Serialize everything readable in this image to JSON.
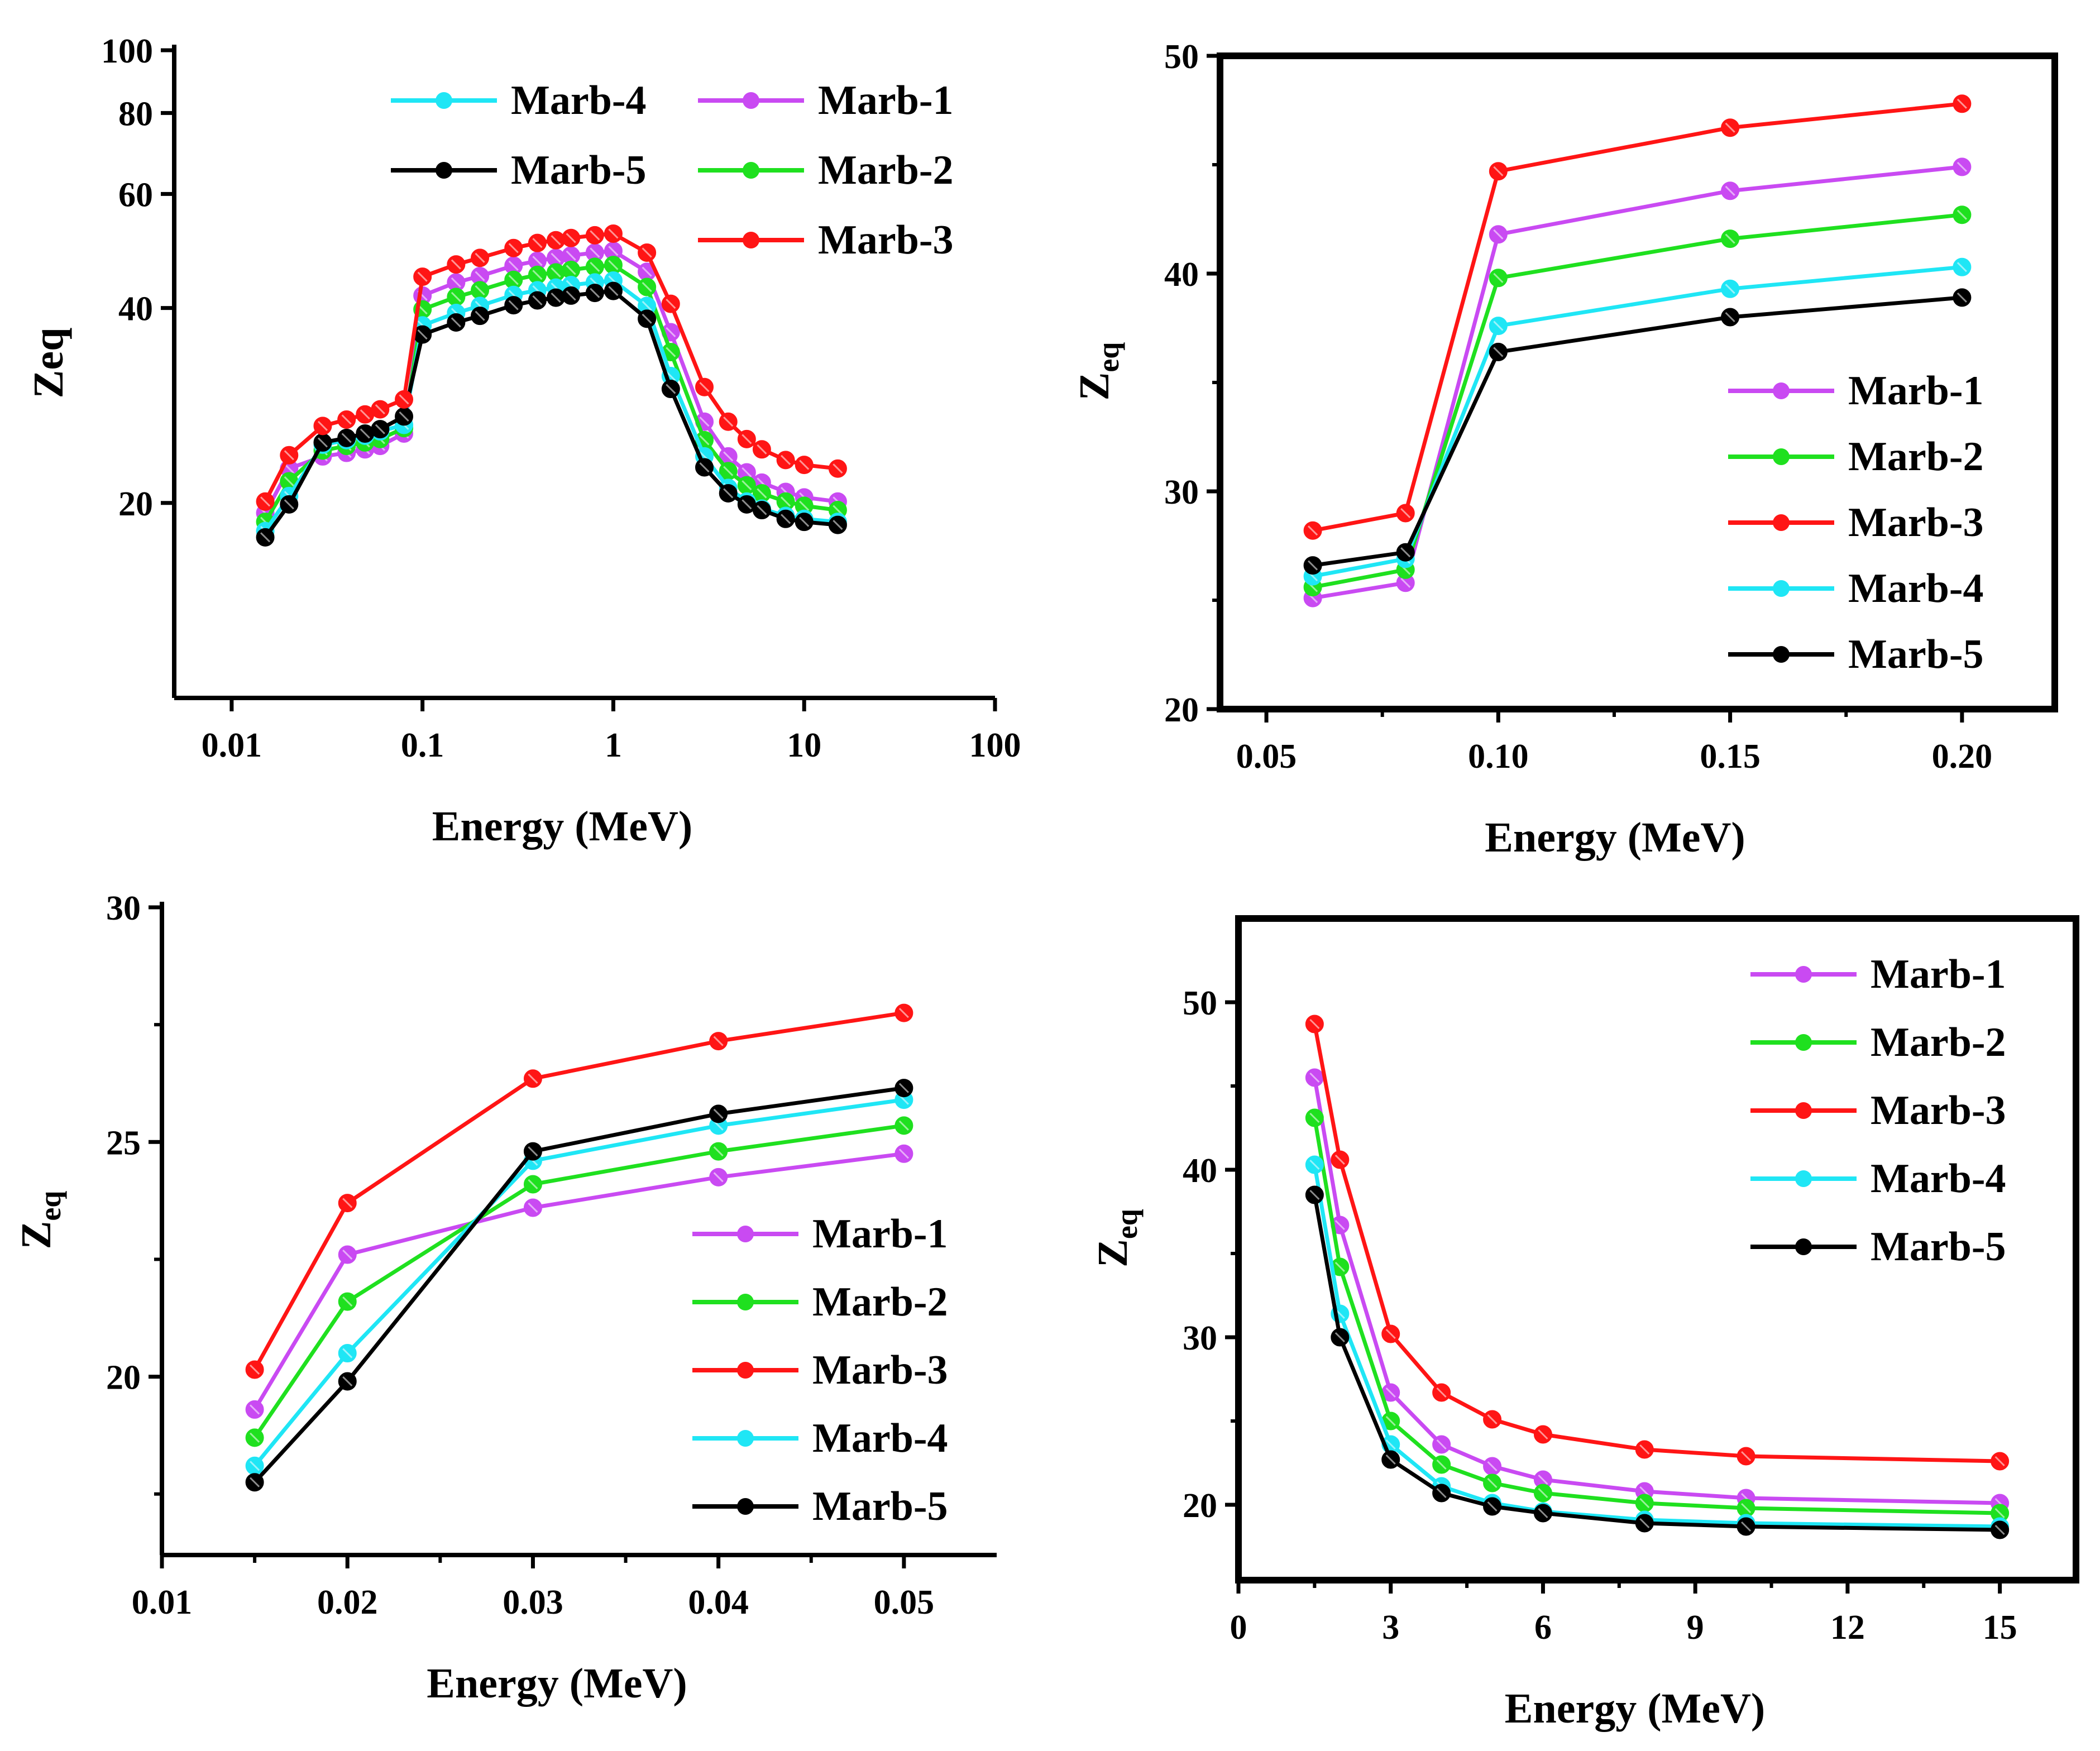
{
  "figure": {
    "description_panels": [
      "top-left",
      "top-right",
      "bottom-left",
      "bottom-right"
    ]
  },
  "colors": {
    "Marb-1": "#c94af2",
    "Marb-2": "#1fe01f",
    "Marb-3": "#ff1515",
    "Marb-4": "#1fe6f5",
    "Marb-5": "#000000",
    "axis": "#000000"
  },
  "chart_data": [
    {
      "type": "line",
      "panel": "top-left",
      "xscale": "log",
      "yscale": "log",
      "xlabel": "Energy (MeV)",
      "ylabel": "Zeq",
      "ylabel_sub": "",
      "xlim": [
        0.005,
        100
      ],
      "ylim": [
        10,
        100
      ],
      "xticks": [
        0.01,
        0.1,
        1,
        10,
        100
      ],
      "xtick_labels": [
        "0.01",
        "0.1",
        "1",
        "10",
        "100"
      ],
      "yticks": [
        20,
        40,
        60,
        80,
        100
      ],
      "ytick_labels": [
        "20",
        "40",
        "60",
        "80",
        "100"
      ],
      "legend_placement": "top-right",
      "legend_order": [
        "Marb-4",
        "Marb-5",
        "Marb-1",
        "Marb-2",
        "Marb-3"
      ],
      "legend_labels": {
        "Marb-1": "Marb-1",
        "Marb-2": "Marb-2",
        "Marb-3": "Marb-3",
        "Marb-4": "Marb-4",
        "Marb-5": "Marb-5"
      },
      "x": [
        0.015,
        0.02,
        0.03,
        0.04,
        0.05,
        0.06,
        0.08,
        0.1,
        0.15,
        0.2,
        0.3,
        0.4,
        0.5,
        0.6,
        0.8,
        1,
        1.5,
        2,
        3,
        4,
        5,
        6,
        8,
        10,
        15
      ],
      "series": [
        {
          "name": "Marb-1",
          "values": [
            19.3,
            22.6,
            23.6,
            23.9,
            24.2,
            24.5,
            25.6,
            41.8,
            43.8,
            44.8,
            46.5,
            47.3,
            47.8,
            48.2,
            48.7,
            49.0,
            45.5,
            36.7,
            26.7,
            23.6,
            22.3,
            21.5,
            20.8,
            20.4,
            20.1
          ]
        },
        {
          "name": "Marb-2",
          "values": [
            18.7,
            21.6,
            24.1,
            24.5,
            24.8,
            25.1,
            26.1,
            39.8,
            41.6,
            42.6,
            44.2,
            45.0,
            45.4,
            45.8,
            46.3,
            46.6,
            43.1,
            34.2,
            25.0,
            22.4,
            21.3,
            20.7,
            20.1,
            19.8,
            19.5
          ]
        },
        {
          "name": "Marb-3",
          "values": [
            20.1,
            23.7,
            26.3,
            26.9,
            27.4,
            27.9,
            28.9,
            44.7,
            46.7,
            47.8,
            49.5,
            50.4,
            50.9,
            51.3,
            51.8,
            52.1,
            48.7,
            40.6,
            30.2,
            26.7,
            25.1,
            24.2,
            23.3,
            22.9,
            22.6
          ]
        },
        {
          "name": "Marb-4",
          "values": [
            18.1,
            20.5,
            24.6,
            25.0,
            25.4,
            25.8,
            26.4,
            37.6,
            39.3,
            40.3,
            41.9,
            42.6,
            43.0,
            43.4,
            43.8,
            44.1,
            40.3,
            31.4,
            23.6,
            21.1,
            20.1,
            19.6,
            19.1,
            18.9,
            18.7
          ]
        },
        {
          "name": "Marb-5",
          "values": [
            17.7,
            19.9,
            24.8,
            25.2,
            25.6,
            26.0,
            27.2,
            36.4,
            38.0,
            38.9,
            40.4,
            41.1,
            41.5,
            41.8,
            42.2,
            42.5,
            38.5,
            30.0,
            22.7,
            20.7,
            19.9,
            19.5,
            18.9,
            18.7,
            18.5
          ]
        }
      ]
    },
    {
      "type": "line",
      "panel": "top-right",
      "xscale": "linear",
      "yscale": "linear",
      "xlabel": "Energy (MeV)",
      "ylabel": "Z",
      "ylabel_sub": "eq",
      "xlim": [
        0.04,
        0.22
      ],
      "ylim": [
        20,
        50
      ],
      "xticks": [
        0.05,
        0.1,
        0.15,
        0.2
      ],
      "xtick_labels": [
        "0.05",
        "0.10",
        "0.15",
        "0.20"
      ],
      "yticks": [
        20,
        30,
        40,
        50
      ],
      "ytick_labels": [
        "20",
        "30",
        "40",
        "50"
      ],
      "legend_placement": "bottom-right",
      "legend_order": [
        "Marb-1",
        "Marb-2",
        "Marb-3",
        "Marb-4",
        "Marb-5"
      ],
      "legend_labels": {
        "Marb-1": "Marb-1",
        "Marb-2": "Marb-2",
        "Marb-3": "Marb-3",
        "Marb-4": "Marb-4",
        "Marb-5": "Marb-5"
      },
      "x": [
        0.06,
        0.08,
        0.1,
        0.15,
        0.2
      ],
      "series": [
        {
          "name": "Marb-1",
          "values": [
            25.1,
            25.8,
            41.8,
            43.8,
            44.9
          ]
        },
        {
          "name": "Marb-2",
          "values": [
            25.6,
            26.4,
            39.8,
            41.6,
            42.7
          ]
        },
        {
          "name": "Marb-3",
          "values": [
            28.2,
            29.0,
            44.7,
            46.7,
            47.8
          ]
        },
        {
          "name": "Marb-4",
          "values": [
            26.1,
            26.9,
            37.6,
            39.3,
            40.3
          ]
        },
        {
          "name": "Marb-5",
          "values": [
            26.6,
            27.2,
            36.4,
            38.0,
            38.9
          ]
        }
      ]
    },
    {
      "type": "line",
      "panel": "bottom-left",
      "xscale": "linear",
      "yscale": "linear",
      "xlabel": "Energy (MeV)",
      "ylabel": "Z",
      "ylabel_sub": "eq",
      "xlim": [
        0.01,
        0.055
      ],
      "ylim": [
        16.2,
        30
      ],
      "xticks": [
        0.01,
        0.02,
        0.03,
        0.04,
        0.05
      ],
      "xtick_labels": [
        "0.01",
        "0.02",
        "0.03",
        "0.04",
        "0.05"
      ],
      "yticks": [
        20,
        25,
        30
      ],
      "ytick_labels": [
        "20",
        "25",
        "30"
      ],
      "legend_placement": "bottom-right",
      "legend_order": [
        "Marb-1",
        "Marb-2",
        "Marb-3",
        "Marb-4",
        "Marb-5"
      ],
      "legend_labels": {
        "Marb-1": "Marb-1",
        "Marb-2": "Marb-2",
        "Marb-3": "Marb-3",
        "Marb-4": "Marb-4",
        "Marb-5": "Marb-5"
      },
      "x": [
        0.015,
        0.02,
        0.03,
        0.04,
        0.05
      ],
      "series": [
        {
          "name": "Marb-1",
          "values": [
            19.3,
            22.6,
            23.6,
            24.25,
            24.75
          ]
        },
        {
          "name": "Marb-2",
          "values": [
            18.7,
            21.6,
            24.1,
            24.8,
            25.35
          ]
        },
        {
          "name": "Marb-3",
          "values": [
            20.15,
            23.7,
            26.35,
            27.15,
            27.75
          ]
        },
        {
          "name": "Marb-4",
          "values": [
            18.1,
            20.5,
            24.6,
            25.35,
            25.9
          ]
        },
        {
          "name": "Marb-5",
          "values": [
            17.75,
            19.9,
            24.8,
            25.6,
            26.15
          ]
        }
      ]
    },
    {
      "type": "line",
      "panel": "bottom-right",
      "xscale": "linear",
      "yscale": "linear",
      "xlabel": "Energy (MeV)",
      "ylabel": "Z",
      "ylabel_sub": "eq",
      "xlim": [
        0,
        16.5
      ],
      "ylim": [
        15.5,
        55
      ],
      "xticks": [
        0,
        3,
        6,
        9,
        12,
        15
      ],
      "xtick_labels": [
        "0",
        "3",
        "6",
        "9",
        "12",
        "15"
      ],
      "yticks": [
        20,
        30,
        40,
        50
      ],
      "ytick_labels": [
        "20",
        "30",
        "40",
        "50"
      ],
      "legend_placement": "top-right",
      "legend_order": [
        "Marb-1",
        "Marb-2",
        "Marb-3",
        "Marb-4",
        "Marb-5"
      ],
      "legend_labels": {
        "Marb-1": "Marb-1",
        "Marb-2": "Marb-2",
        "Marb-3": "Marb-3",
        "Marb-4": "Marb-4",
        "Marb-5": "Marb-5"
      },
      "x": [
        1.5,
        2,
        3,
        4,
        5,
        6,
        8,
        10,
        15
      ],
      "series": [
        {
          "name": "Marb-1",
          "values": [
            45.5,
            36.7,
            26.7,
            23.6,
            22.3,
            21.5,
            20.8,
            20.4,
            20.1
          ]
        },
        {
          "name": "Marb-2",
          "values": [
            43.1,
            34.2,
            25.0,
            22.4,
            21.3,
            20.7,
            20.1,
            19.8,
            19.5
          ]
        },
        {
          "name": "Marb-3",
          "values": [
            48.7,
            40.6,
            30.2,
            26.7,
            25.1,
            24.2,
            23.3,
            22.9,
            22.6
          ]
        },
        {
          "name": "Marb-4",
          "values": [
            40.3,
            31.4,
            23.6,
            21.1,
            20.1,
            19.6,
            19.1,
            18.9,
            18.7
          ]
        },
        {
          "name": "Marb-5",
          "values": [
            38.5,
            30.0,
            22.7,
            20.7,
            19.9,
            19.5,
            18.9,
            18.7,
            18.5
          ]
        }
      ]
    }
  ]
}
